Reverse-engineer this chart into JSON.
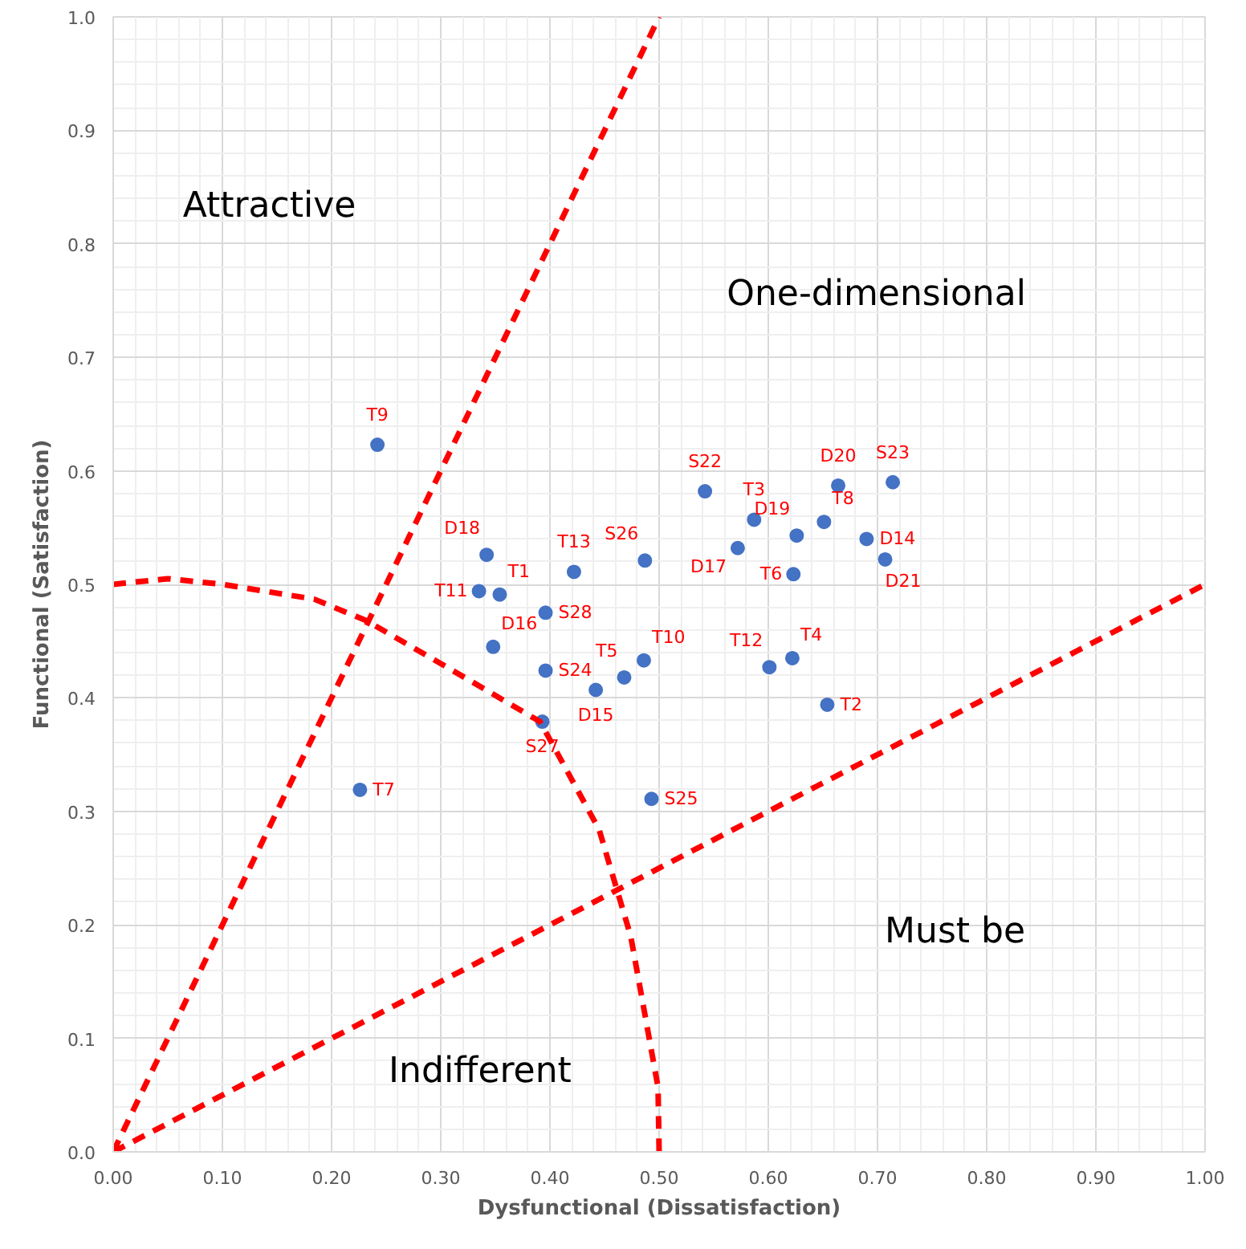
{
  "chart_data": {
    "type": "scatter",
    "xlabel": "Dysfunctional (Dissatisfaction)",
    "ylabel": "Functional (Satisfaction)",
    "xlim": [
      0,
      1
    ],
    "ylim": [
      0,
      1
    ],
    "xticks": [
      {
        "value": 0,
        "label": "0.00"
      },
      {
        "value": 0.1,
        "label": "0.10"
      },
      {
        "value": 0.2,
        "label": "0.20"
      },
      {
        "value": 0.3,
        "label": "0.30"
      },
      {
        "value": 0.4,
        "label": "0.40"
      },
      {
        "value": 0.5,
        "label": "0.50"
      },
      {
        "value": 0.6,
        "label": "0.60"
      },
      {
        "value": 0.7,
        "label": "0.70"
      },
      {
        "value": 0.8,
        "label": "0.80"
      },
      {
        "value": 0.9,
        "label": "0.90"
      },
      {
        "value": 1,
        "label": "1.00"
      }
    ],
    "yticks": [
      {
        "value": 0,
        "label": "0.0"
      },
      {
        "value": 0.1,
        "label": "0.1"
      },
      {
        "value": 0.2,
        "label": "0.2"
      },
      {
        "value": 0.3,
        "label": "0.3"
      },
      {
        "value": 0.4,
        "label": "0.4"
      },
      {
        "value": 0.5,
        "label": "0.5"
      },
      {
        "value": 0.6,
        "label": "0.6"
      },
      {
        "value": 0.7,
        "label": "0.7"
      },
      {
        "value": 0.8,
        "label": "0.8"
      },
      {
        "value": 0.9,
        "label": "0.9"
      },
      {
        "value": 1,
        "label": "1.0"
      }
    ],
    "grid": true,
    "marker": "circle",
    "series": [
      {
        "color": "#4472c4",
        "x": [
          0.242,
          0.342,
          0.335,
          0.354,
          0.422,
          0.396,
          0.348,
          0.396,
          0.442,
          0.468,
          0.486,
          0.393,
          0.226,
          0.493,
          0.487,
          0.542,
          0.587,
          0.572,
          0.626,
          0.623,
          0.664,
          0.651,
          0.714,
          0.69,
          0.707,
          0.601,
          0.622,
          0.654
        ],
        "values": [
          0.623,
          0.526,
          0.494,
          0.491,
          0.511,
          0.475,
          0.445,
          0.424,
          0.407,
          0.418,
          0.433,
          0.379,
          0.319,
          0.311,
          0.521,
          0.582,
          0.557,
          0.532,
          0.543,
          0.509,
          0.587,
          0.555,
          0.59,
          0.54,
          0.522,
          0.427,
          0.435,
          0.394
        ]
      },
      {
        "type": "line",
        "marker": "none",
        "color": "#ff0000",
        "line_style": "dashed",
        "x": [
          0,
          0.5
        ],
        "values": [
          0,
          1
        ]
      },
      {
        "type": "line",
        "marker": "none",
        "color": "#ff0000",
        "line_style": "dashed",
        "x": [
          0,
          1
        ],
        "values": [
          0,
          0.5
        ]
      },
      {
        "type": "line",
        "marker": "none",
        "color": "#ff0000",
        "line_style": "dashed",
        "x": [
          0,
          0.05,
          0.1,
          0.184,
          0.232,
          0.329,
          0.391,
          0.445,
          0.474,
          0.499,
          0.5
        ],
        "values": [
          0.5,
          0.505,
          0.5,
          0.487,
          0.468,
          0.414,
          0.379,
          0.284,
          0.19,
          0.057,
          0
        ]
      }
    ],
    "annotations": [
      {
        "text": "T9",
        "x": 0.242,
        "y": 0.623
      },
      {
        "text": "D18",
        "x": 0.342,
        "y": 0.526
      },
      {
        "text": "T11",
        "x": 0.335,
        "y": 0.494
      },
      {
        "text": "T1",
        "x": 0.354,
        "y": 0.491
      },
      {
        "text": "T13",
        "x": 0.422,
        "y": 0.511
      },
      {
        "text": "S28",
        "x": 0.396,
        "y": 0.475
      },
      {
        "text": "D16",
        "x": 0.348,
        "y": 0.445
      },
      {
        "text": "S24",
        "x": 0.396,
        "y": 0.424
      },
      {
        "text": "D15",
        "x": 0.442,
        "y": 0.407
      },
      {
        "text": "T5",
        "x": 0.468,
        "y": 0.418
      },
      {
        "text": "T10",
        "x": 0.486,
        "y": 0.433
      },
      {
        "text": "S27",
        "x": 0.393,
        "y": 0.379
      },
      {
        "text": "T7",
        "x": 0.226,
        "y": 0.319
      },
      {
        "text": "S25",
        "x": 0.493,
        "y": 0.311
      },
      {
        "text": "S26",
        "x": 0.487,
        "y": 0.521
      },
      {
        "text": "S22",
        "x": 0.542,
        "y": 0.582
      },
      {
        "text": "T3",
        "x": 0.587,
        "y": 0.557
      },
      {
        "text": "D17",
        "x": 0.572,
        "y": 0.532
      },
      {
        "text": "D19",
        "x": 0.626,
        "y": 0.543
      },
      {
        "text": "T6",
        "x": 0.623,
        "y": 0.509
      },
      {
        "text": "D20",
        "x": 0.664,
        "y": 0.587
      },
      {
        "text": "T8",
        "x": 0.651,
        "y": 0.555
      },
      {
        "text": "S23",
        "x": 0.714,
        "y": 0.59
      },
      {
        "text": "D14",
        "x": 0.69,
        "y": 0.54
      },
      {
        "text": "D21",
        "x": 0.707,
        "y": 0.522
      },
      {
        "text": "T12",
        "x": 0.601,
        "y": 0.427
      },
      {
        "text": "T4",
        "x": 0.622,
        "y": 0.435
      },
      {
        "text": "T2",
        "x": 0.654,
        "y": 0.394
      },
      "Attractive",
      "One-dimensional",
      "Must be",
      "Indifferent"
    ]
  }
}
